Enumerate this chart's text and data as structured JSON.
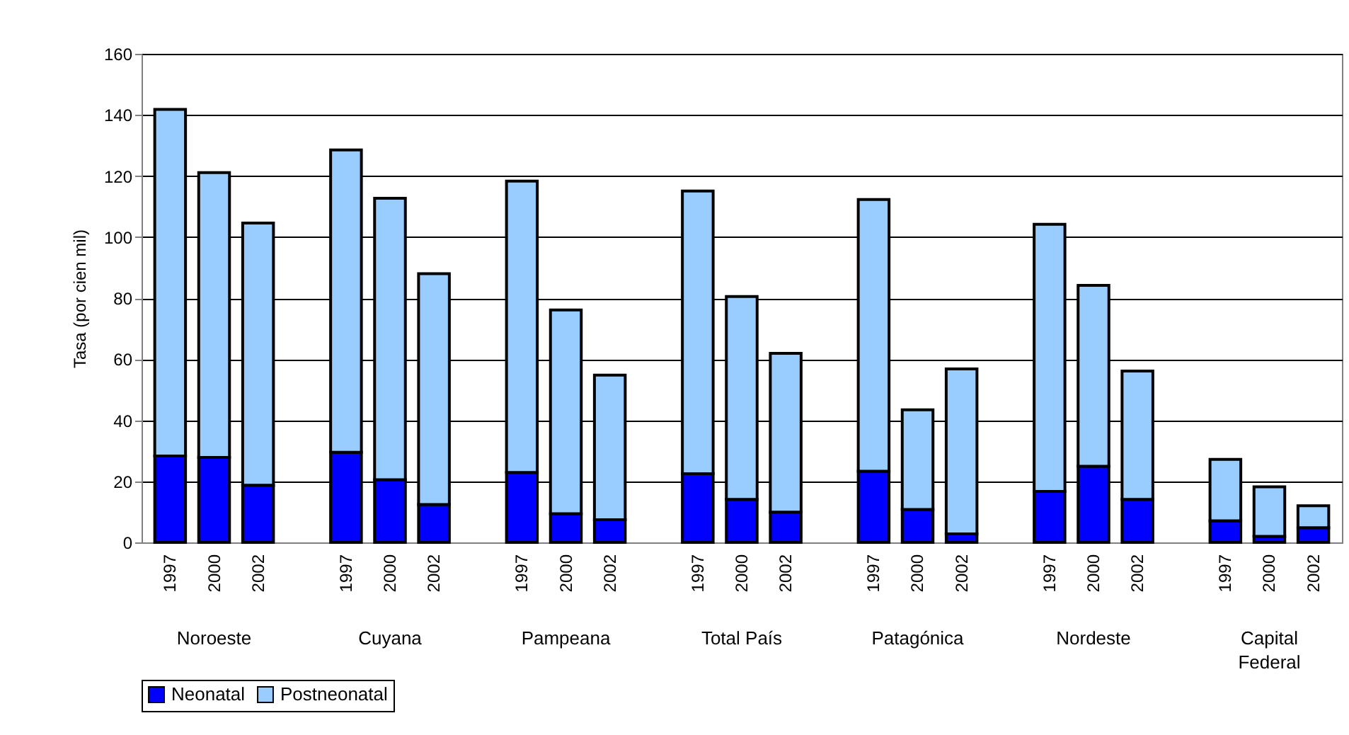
{
  "chart_data": {
    "type": "bar",
    "stacked": true,
    "ylabel": "Tasa (por cien mil)",
    "categories": [
      "1997",
      "2000",
      "2002",
      null,
      "1997",
      "2000",
      "2002",
      null,
      "1997",
      "2000",
      "2002",
      null,
      "1997",
      "2000",
      "2002",
      null,
      "1997",
      "2000",
      "2002",
      null,
      "1997",
      "2000",
      "2002",
      null,
      "1997",
      "2000",
      "2002"
    ],
    "series": [
      {
        "name": "Neonatal",
        "color": "#0000ff",
        "values": [
          28.3,
          27.8,
          18.7,
          null,
          29.5,
          20.5,
          12.4,
          null,
          22.9,
          9.4,
          7.4,
          null,
          22.5,
          14.1,
          9.9,
          null,
          23.3,
          10.8,
          2.8,
          null,
          16.7,
          24.9,
          14.1,
          null,
          7.1,
          2.0,
          4.8
        ]
      },
      {
        "name": "Postneonatal",
        "color": "#99ccff",
        "values": [
          113.5,
          93.3,
          85.9,
          null,
          99.0,
          92.2,
          75.6,
          null,
          95.4,
          66.7,
          47.4,
          null,
          92.6,
          66.4,
          52.0,
          null,
          89.0,
          32.6,
          54.0,
          null,
          87.5,
          59.3,
          42.0,
          null,
          20.1,
          16.2,
          7.2
        ]
      }
    ],
    "annotations": [
      "Noroeste",
      "Cuyana",
      "Pampeana",
      "Total País",
      "Patagónica",
      "Nordeste",
      "Capital\nFederal"
    ],
    "ylim": [
      0,
      160
    ],
    "yticks": [
      0,
      20,
      40,
      60,
      80,
      100,
      120,
      140,
      160
    ],
    "grid": "y",
    "legend": "bottom"
  }
}
